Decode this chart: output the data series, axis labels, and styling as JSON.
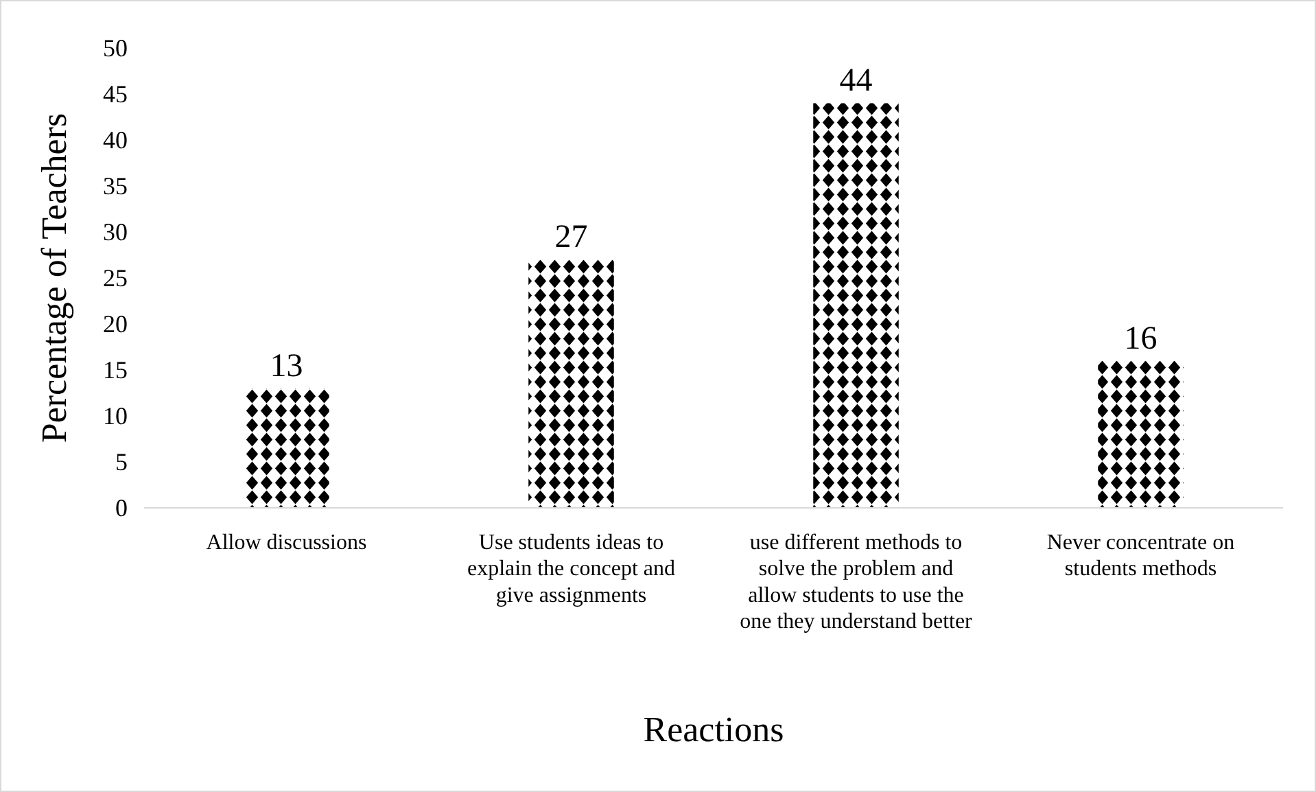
{
  "chart_data": {
    "type": "bar",
    "xlabel": "Reactions",
    "ylabel": "Percentage of Teachers",
    "categories": [
      "Allow discussions",
      "Use students ideas to explain the concept and give assignments",
      "use different methods to solve the problem and allow students to use the one they understand better",
      "Never concentrate on students methods"
    ],
    "values": [
      13,
      27,
      44,
      16
    ],
    "color": "#000000",
    "ylim": [
      0,
      50
    ],
    "yticks": [
      0,
      5,
      10,
      15,
      20,
      25,
      30,
      35,
      40,
      45,
      50
    ],
    "grid": false,
    "data_labels": true
  }
}
